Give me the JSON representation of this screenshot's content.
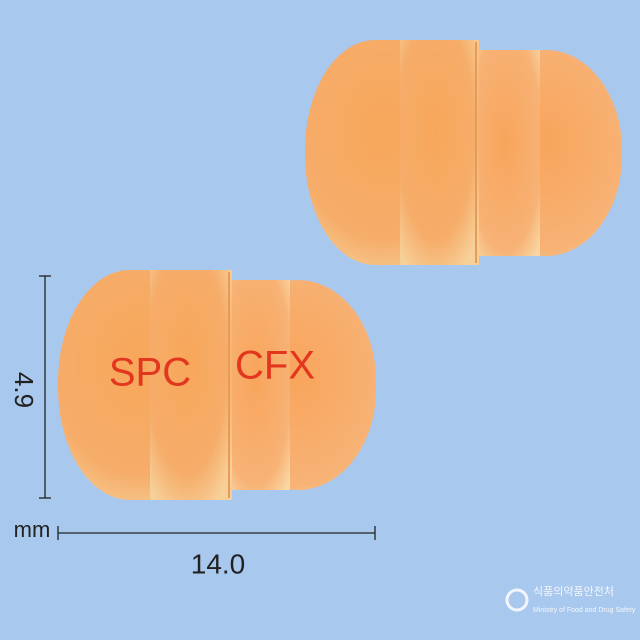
{
  "imprint": [
    "SPC",
    "CFX"
  ],
  "dimensions": {
    "height": "4.9",
    "unit": "mm",
    "length": "14.0"
  },
  "watermark": {
    "org_korean": "식품의약품안전처",
    "org_english": "Ministry of Food and Drug Safety"
  }
}
